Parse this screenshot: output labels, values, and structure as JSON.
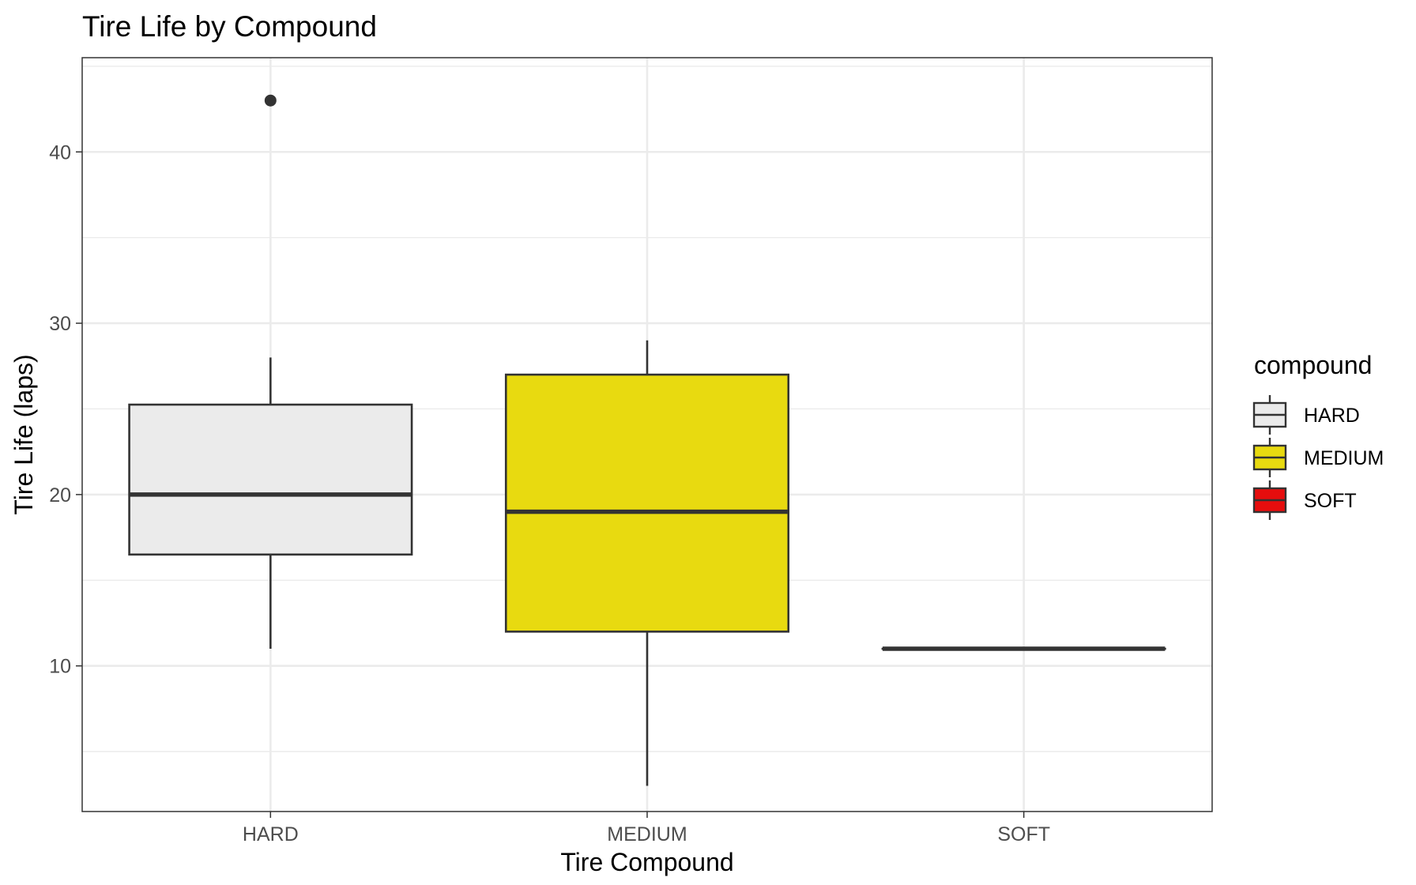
{
  "chart_data": {
    "type": "boxplot",
    "title": "Tire Life by Compound",
    "xlabel": "Tire Compound",
    "ylabel": "Tire Life (laps)",
    "categories": [
      "HARD",
      "MEDIUM",
      "SOFT"
    ],
    "ylim": [
      1.5,
      45.5
    ],
    "yticks": [
      10,
      20,
      30,
      40
    ],
    "grid": true,
    "legend": {
      "title": "compound",
      "placement": "right",
      "entries": [
        "HARD",
        "MEDIUM",
        "SOFT"
      ]
    },
    "series": [
      {
        "category": "HARD",
        "whisker_low": 11,
        "q1": 16.5,
        "median": 20,
        "q3": 25.25,
        "whisker_high": 28,
        "outliers": [
          43
        ],
        "fill": "#EBEBEB"
      },
      {
        "category": "MEDIUM",
        "whisker_low": 3,
        "q1": 12,
        "median": 19,
        "q3": 27,
        "whisker_high": 29,
        "outliers": [],
        "fill": "#E8DA10"
      },
      {
        "category": "SOFT",
        "whisker_low": 11,
        "q1": 11,
        "median": 11,
        "q3": 11,
        "whisker_high": 11,
        "outliers": [],
        "fill": "#E60D0D"
      }
    ]
  }
}
